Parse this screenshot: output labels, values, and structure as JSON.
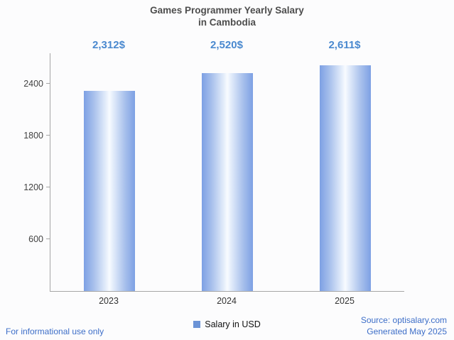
{
  "title": {
    "line1": "Games Programmer Yearly Salary",
    "line2": "in Cambodia"
  },
  "chart_data": {
    "type": "bar",
    "categories": [
      "2023",
      "2024",
      "2025"
    ],
    "values": [
      2312,
      2520,
      2611
    ],
    "value_labels": [
      "2,312$",
      "2,520$",
      "2,611$"
    ],
    "series_name": "Salary in USD",
    "title": "Games Programmer Yearly Salary in Cambodia",
    "xlabel": "",
    "ylabel": "",
    "ylim": [
      0,
      2750
    ],
    "yticks": [
      600,
      1200,
      1800,
      2400
    ],
    "grid": false,
    "legend_position": "bottom"
  },
  "legend": {
    "label": "Salary in USD"
  },
  "footer": {
    "left": "For informational use only",
    "source": "Source: optisalary.com",
    "generated": "Generated May 2025"
  },
  "colors": {
    "value_label": "#4a89cf",
    "footer_text": "#3d6ec8",
    "legend_swatch": "#6b93d6",
    "bar_edge": "#7da0e4",
    "bar_center": "#f8fbff",
    "axis": "#a6a6a6",
    "title_text": "#4d4d4d"
  }
}
